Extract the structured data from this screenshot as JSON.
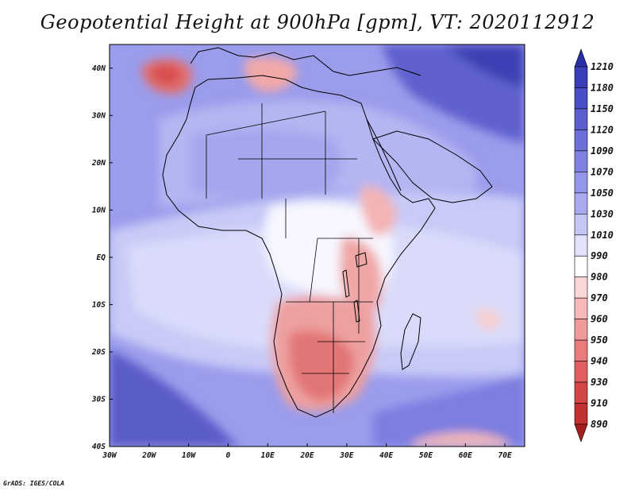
{
  "title": "Geopotential Height at 900hPa [gpm], VT: 2020112912",
  "credit": "GrADS: IGES/COLA",
  "map": {
    "lon_range": [
      -30,
      75
    ],
    "lat_range": [
      -40,
      45
    ],
    "x_ticks": [
      {
        "lon": -30,
        "label": "30W"
      },
      {
        "lon": -20,
        "label": "20W"
      },
      {
        "lon": -10,
        "label": "10W"
      },
      {
        "lon": 0,
        "label": "0"
      },
      {
        "lon": 10,
        "label": "10E"
      },
      {
        "lon": 20,
        "label": "20E"
      },
      {
        "lon": 30,
        "label": "30E"
      },
      {
        "lon": 40,
        "label": "40E"
      },
      {
        "lon": 50,
        "label": "50E"
      },
      {
        "lon": 60,
        "label": "60E"
      },
      {
        "lon": 70,
        "label": "70E"
      }
    ],
    "y_ticks": [
      {
        "lat": 40,
        "label": "40N"
      },
      {
        "lat": 30,
        "label": "30N"
      },
      {
        "lat": 20,
        "label": "20N"
      },
      {
        "lat": 10,
        "label": "10N"
      },
      {
        "lat": 0,
        "label": "EQ"
      },
      {
        "lat": -10,
        "label": "10S"
      },
      {
        "lat": -20,
        "label": "20S"
      },
      {
        "lat": -30,
        "label": "30S"
      },
      {
        "lat": -40,
        "label": "40S"
      }
    ]
  },
  "colorbar": {
    "labels": [
      "1210",
      "1180",
      "1150",
      "1120",
      "1090",
      "1070",
      "1050",
      "1030",
      "1010",
      "990",
      "980",
      "970",
      "960",
      "950",
      "940",
      "930",
      "910",
      "890"
    ],
    "colors": [
      "#2b2fa8",
      "#3a3eb8",
      "#4a4ec6",
      "#5c5fd0",
      "#6e70da",
      "#8082e2",
      "#9496ea",
      "#a8aaf0",
      "#c4c6f6",
      "#e2e3fb",
      "#ffffff",
      "#fbd6d6",
      "#f6b8b8",
      "#f09a9a",
      "#ea7c7c",
      "#e15f5f",
      "#d44545",
      "#c23030",
      "#a81e1e"
    ]
  }
}
